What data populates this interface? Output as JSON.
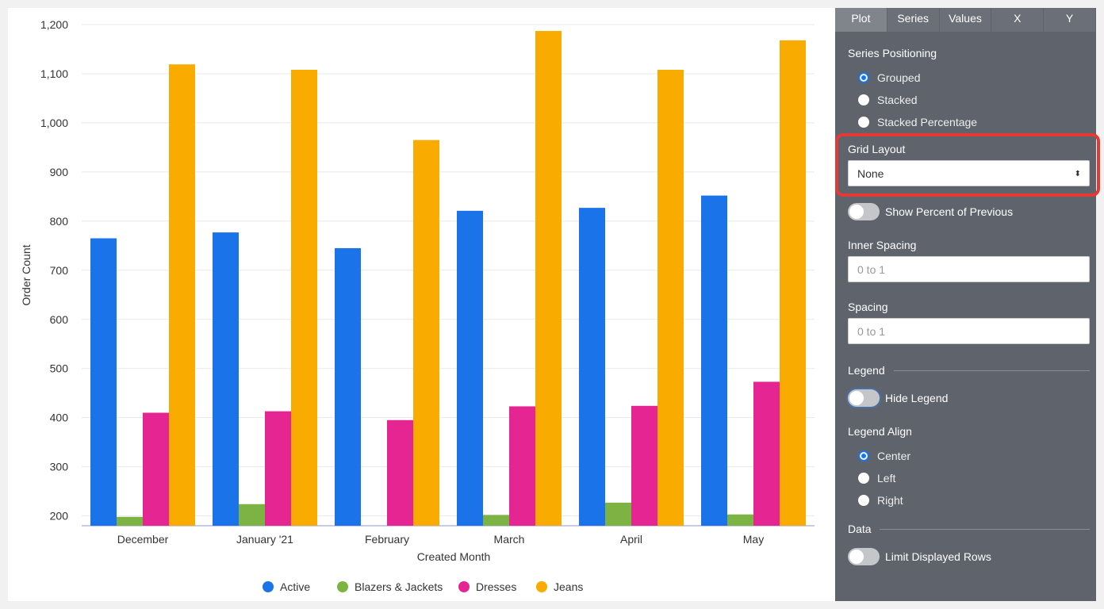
{
  "chart_data": {
    "type": "bar",
    "xlabel": "Created Month",
    "ylabel": "Order Count",
    "ylim": [
      180,
      1200
    ],
    "yticks": [
      "200",
      "300",
      "400",
      "500",
      "600",
      "700",
      "800",
      "900",
      "1,000",
      "1,100",
      "1,200"
    ],
    "ytick_values": [
      200,
      300,
      400,
      500,
      600,
      700,
      800,
      900,
      1000,
      1100,
      1200
    ],
    "categories": [
      "December",
      "January '21",
      "February",
      "March",
      "April",
      "May"
    ],
    "grid": true,
    "legend_position": "bottom",
    "series": [
      {
        "name": "Active",
        "color": "#1a73e8",
        "values": [
          765,
          777,
          745,
          821,
          827,
          852
        ]
      },
      {
        "name": "Blazers & Jackets",
        "color": "#7cb342",
        "values": [
          198,
          224,
          null,
          202,
          227,
          203
        ]
      },
      {
        "name": "Dresses",
        "color": "#e52592",
        "values": [
          410,
          413,
          395,
          423,
          424,
          473
        ]
      },
      {
        "name": "Jeans",
        "color": "#f9ab00",
        "values": [
          1119,
          1108,
          965,
          1187,
          1108,
          1168
        ]
      }
    ]
  },
  "panel": {
    "tabs": [
      "Plot",
      "Series",
      "Values",
      "X",
      "Y"
    ],
    "active_tab": "Plot",
    "series_positioning": {
      "label": "Series Positioning",
      "options": [
        "Grouped",
        "Stacked",
        "Stacked Percentage"
      ],
      "selected": "Grouped"
    },
    "grid_layout": {
      "label": "Grid Layout",
      "value": "None"
    },
    "show_percent": {
      "label": "Show Percent of Previous",
      "on": false
    },
    "inner_spacing": {
      "label": "Inner Spacing",
      "placeholder": "0 to 1"
    },
    "spacing": {
      "label": "Spacing",
      "placeholder": "0 to 1"
    },
    "legend_section": "Legend",
    "hide_legend": {
      "label": "Hide Legend",
      "on": false
    },
    "legend_align": {
      "label": "Legend Align",
      "options": [
        "Center",
        "Left",
        "Right"
      ],
      "selected": "Center"
    },
    "data_section": "Data",
    "limit_rows": {
      "label": "Limit Displayed Rows",
      "on": false
    }
  }
}
